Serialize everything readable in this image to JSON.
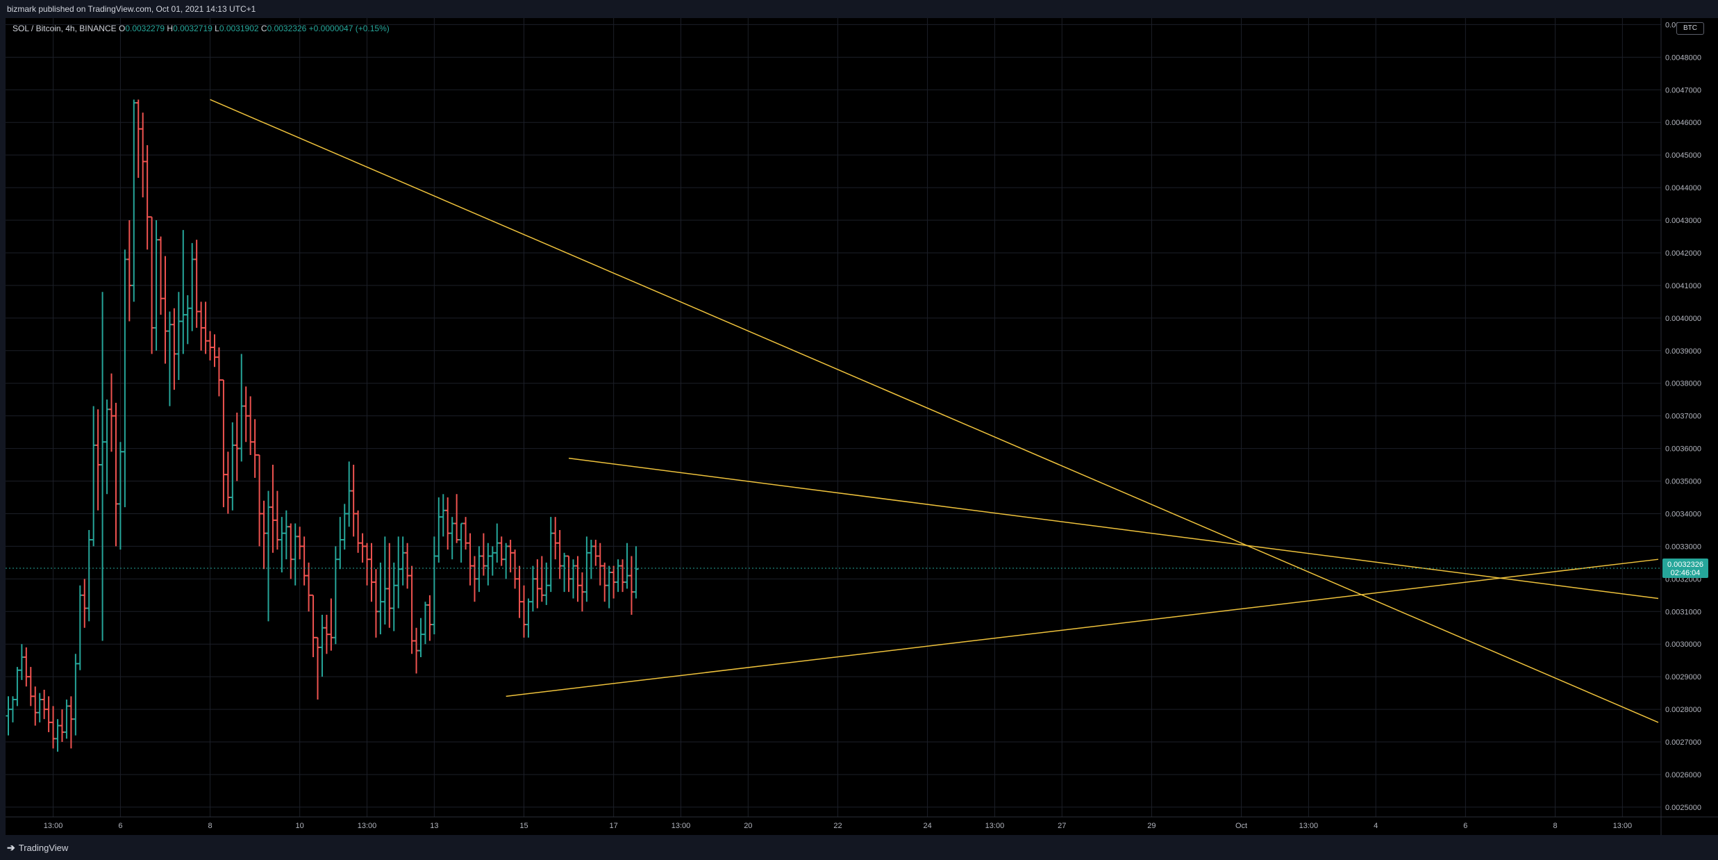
{
  "header": {
    "published": "bizmark published on TradingView.com, Oct 01, 2021 14:13 UTC+1"
  },
  "legend": {
    "symbol": "SOL / Bitcoin, 4h, BINANCE",
    "open_label": "O",
    "open": "0.0032279",
    "high_label": "H",
    "high": "0.0032719",
    "low_label": "L",
    "low": "0.0031902",
    "close_label": "C",
    "close": "0.0032326",
    "change": "+0.0000047 (+0.15%)"
  },
  "currency_badge": "BTC",
  "price_tag": {
    "price": "0.0032326",
    "countdown": "02:46:04",
    "color": "#26a69a"
  },
  "footer": {
    "brand": "TradingView"
  },
  "colors": {
    "up": "#26a69a",
    "down": "#ef5350",
    "trendline": "#f0c33c",
    "grid": "#1c1f28"
  },
  "chart_data": {
    "type": "ohlc",
    "title": "SOL / Bitcoin, 4h, BINANCE",
    "ylim": [
      0.00247,
      0.00492
    ],
    "y_ticks": [
      "0.0025000",
      "0.0026000",
      "0.0027000",
      "0.0028000",
      "0.0029000",
      "0.0030000",
      "0.0031000",
      "0.0032000",
      "0.0033000",
      "0.0034000",
      "0.0035000",
      "0.0036000",
      "0.0037000",
      "0.0038000",
      "0.0039000",
      "0.0040000",
      "0.0041000",
      "0.0042000",
      "0.0043000",
      "0.0044000",
      "0.0045000",
      "0.0046000",
      "0.0047000",
      "0.0048000",
      "0.0049000"
    ],
    "x_ticks": [
      {
        "label": "13:00",
        "bar": 10
      },
      {
        "label": "6",
        "bar": 25
      },
      {
        "label": "8",
        "bar": 45
      },
      {
        "label": "10",
        "bar": 65
      },
      {
        "label": "13:00",
        "bar": 80
      },
      {
        "label": "13",
        "bar": 95
      },
      {
        "label": "15",
        "bar": 115
      },
      {
        "label": "17",
        "bar": 135
      },
      {
        "label": "13:00",
        "bar": 150
      },
      {
        "label": "20",
        "bar": 165
      },
      {
        "label": "22",
        "bar": 185
      },
      {
        "label": "24",
        "bar": 205
      },
      {
        "label": "13:00",
        "bar": 220
      },
      {
        "label": "27",
        "bar": 235
      },
      {
        "label": "29",
        "bar": 255
      },
      {
        "label": "Oct",
        "bar": 275
      },
      {
        "label": "13:00",
        "bar": 290
      },
      {
        "label": "4",
        "bar": 305
      },
      {
        "label": "6",
        "bar": 325
      },
      {
        "label": "8",
        "bar": 345
      },
      {
        "label": "13:00",
        "bar": 360
      }
    ],
    "bars_total_span": 368,
    "ohlc": [
      [
        0.00278,
        0.00284,
        0.00272,
        0.0028
      ],
      [
        0.0028,
        0.00284,
        0.00276,
        0.00283
      ],
      [
        0.00283,
        0.00293,
        0.00281,
        0.00292
      ],
      [
        0.00292,
        0.003,
        0.00289,
        0.00296
      ],
      [
        0.00296,
        0.00299,
        0.00287,
        0.0029
      ],
      [
        0.0029,
        0.00293,
        0.00281,
        0.00284
      ],
      [
        0.00284,
        0.00287,
        0.00275,
        0.00279
      ],
      [
        0.00279,
        0.00285,
        0.00276,
        0.00283
      ],
      [
        0.00283,
        0.00286,
        0.00277,
        0.0028
      ],
      [
        0.0028,
        0.00284,
        0.00273,
        0.00276
      ],
      [
        0.00276,
        0.00281,
        0.00268,
        0.00271
      ],
      [
        0.00271,
        0.00277,
        0.00267,
        0.00275
      ],
      [
        0.00275,
        0.0028,
        0.0027,
        0.00273
      ],
      [
        0.00273,
        0.00283,
        0.00271,
        0.00281
      ],
      [
        0.00281,
        0.00284,
        0.00268,
        0.00277
      ],
      [
        0.00277,
        0.00297,
        0.00272,
        0.00294
      ],
      [
        0.00294,
        0.00318,
        0.00292,
        0.00315
      ],
      [
        0.00315,
        0.0032,
        0.00305,
        0.00311
      ],
      [
        0.00311,
        0.00335,
        0.00307,
        0.00332
      ],
      [
        0.00332,
        0.00373,
        0.0033,
        0.00361
      ],
      [
        0.00361,
        0.00372,
        0.00341,
        0.00355
      ],
      [
        0.00355,
        0.00408,
        0.00301,
        0.00362
      ],
      [
        0.00362,
        0.00375,
        0.00346,
        0.00372
      ],
      [
        0.00372,
        0.00383,
        0.00359,
        0.0037
      ],
      [
        0.0037,
        0.00374,
        0.0033,
        0.00343
      ],
      [
        0.00343,
        0.00362,
        0.00329,
        0.00359
      ],
      [
        0.00359,
        0.00421,
        0.00342,
        0.00418
      ],
      [
        0.00418,
        0.0043,
        0.00399,
        0.0041
      ],
      [
        0.0041,
        0.00467,
        0.00405,
        0.00466
      ],
      [
        0.00466,
        0.00467,
        0.00443,
        0.00458
      ],
      [
        0.00458,
        0.00463,
        0.00437,
        0.00448
      ],
      [
        0.00448,
        0.00453,
        0.00421,
        0.00431
      ],
      [
        0.00431,
        0.00431,
        0.00389,
        0.00397
      ],
      [
        0.00397,
        0.0043,
        0.0039,
        0.00424
      ],
      [
        0.00424,
        0.00425,
        0.00401,
        0.00406
      ],
      [
        0.00406,
        0.00419,
        0.00386,
        0.00396
      ],
      [
        0.00396,
        0.00402,
        0.00373,
        0.00398
      ],
      [
        0.00398,
        0.00403,
        0.00378,
        0.00389
      ],
      [
        0.00389,
        0.00408,
        0.00381,
        0.00399
      ],
      [
        0.00399,
        0.00427,
        0.00389,
        0.00401
      ],
      [
        0.00401,
        0.00407,
        0.00392,
        0.00403
      ],
      [
        0.00403,
        0.00423,
        0.00396,
        0.00418
      ],
      [
        0.00418,
        0.00424,
        0.00397,
        0.00402
      ],
      [
        0.00402,
        0.00405,
        0.0039,
        0.00397
      ],
      [
        0.00397,
        0.00405,
        0.00389,
        0.00393
      ],
      [
        0.00393,
        0.00396,
        0.00387,
        0.00391
      ],
      [
        0.00391,
        0.00395,
        0.00385,
        0.00388
      ],
      [
        0.00388,
        0.00391,
        0.00376,
        0.00381
      ],
      [
        0.00381,
        0.00381,
        0.00342,
        0.00352
      ],
      [
        0.00352,
        0.00359,
        0.0034,
        0.00345
      ],
      [
        0.00345,
        0.00368,
        0.00341,
        0.00361
      ],
      [
        0.00361,
        0.00371,
        0.0035,
        0.0036
      ],
      [
        0.0036,
        0.00389,
        0.00356,
        0.00373
      ],
      [
        0.00373,
        0.00379,
        0.00362,
        0.0037
      ],
      [
        0.0037,
        0.00376,
        0.00358,
        0.00362
      ],
      [
        0.00362,
        0.00369,
        0.00351,
        0.00358
      ],
      [
        0.00358,
        0.00358,
        0.0033,
        0.0034
      ],
      [
        0.0034,
        0.00344,
        0.00323,
        0.00334
      ],
      [
        0.00334,
        0.00347,
        0.00307,
        0.00342
      ],
      [
        0.00342,
        0.00355,
        0.00328,
        0.00338
      ],
      [
        0.00338,
        0.00347,
        0.00329,
        0.00332
      ],
      [
        0.00332,
        0.00339,
        0.00322,
        0.00334
      ],
      [
        0.00334,
        0.00341,
        0.00326,
        0.00336
      ],
      [
        0.00336,
        0.00337,
        0.0032,
        0.00326
      ],
      [
        0.00326,
        0.00337,
        0.00318,
        0.00333
      ],
      [
        0.00333,
        0.00336,
        0.00326,
        0.0033
      ],
      [
        0.0033,
        0.00333,
        0.00318,
        0.00321
      ],
      [
        0.00321,
        0.00325,
        0.0031,
        0.00315
      ],
      [
        0.00315,
        0.00315,
        0.00296,
        0.00302
      ],
      [
        0.00302,
        0.00302,
        0.00283,
        0.00299
      ],
      [
        0.00299,
        0.00309,
        0.0029,
        0.00305
      ],
      [
        0.00305,
        0.00309,
        0.00297,
        0.00303
      ],
      [
        0.00303,
        0.00314,
        0.00298,
        0.00302
      ],
      [
        0.00302,
        0.0033,
        0.003,
        0.00326
      ],
      [
        0.00326,
        0.00339,
        0.00323,
        0.00332
      ],
      [
        0.00332,
        0.00343,
        0.00329,
        0.0034
      ],
      [
        0.0034,
        0.00356,
        0.00336,
        0.00347
      ],
      [
        0.00347,
        0.00355,
        0.00333,
        0.0034
      ],
      [
        0.0034,
        0.00341,
        0.00328,
        0.00331
      ],
      [
        0.00331,
        0.00334,
        0.00325,
        0.0033
      ],
      [
        0.0033,
        0.00331,
        0.00318,
        0.00326
      ],
      [
        0.00326,
        0.00331,
        0.00313,
        0.00319
      ],
      [
        0.00319,
        0.00323,
        0.00302,
        0.0031
      ],
      [
        0.0031,
        0.00325,
        0.00303,
        0.00313
      ],
      [
        0.00313,
        0.00333,
        0.00306,
        0.00317
      ],
      [
        0.00317,
        0.00331,
        0.00305,
        0.00311
      ],
      [
        0.00311,
        0.00325,
        0.00304,
        0.00318
      ],
      [
        0.00318,
        0.00333,
        0.00311,
        0.00323
      ],
      [
        0.00323,
        0.00333,
        0.00318,
        0.00328
      ],
      [
        0.00328,
        0.00331,
        0.00317,
        0.00321
      ],
      [
        0.00321,
        0.00324,
        0.00297,
        0.00301
      ],
      [
        0.00301,
        0.00305,
        0.00291,
        0.00298
      ],
      [
        0.00298,
        0.00308,
        0.00296,
        0.00303
      ],
      [
        0.00303,
        0.00313,
        0.003,
        0.00312
      ],
      [
        0.00312,
        0.00315,
        0.00301,
        0.00306
      ],
      [
        0.00306,
        0.00333,
        0.00303,
        0.00327
      ],
      [
        0.00327,
        0.00345,
        0.00325,
        0.00339
      ],
      [
        0.00339,
        0.00346,
        0.00333,
        0.00341
      ],
      [
        0.00341,
        0.00345,
        0.00329,
        0.00334
      ],
      [
        0.00334,
        0.00339,
        0.00326,
        0.00337
      ],
      [
        0.00337,
        0.00346,
        0.00331,
        0.00332
      ],
      [
        0.00332,
        0.00337,
        0.00325,
        0.00337
      ],
      [
        0.00337,
        0.00339,
        0.00329,
        0.00331
      ],
      [
        0.00331,
        0.00334,
        0.00318,
        0.00324
      ],
      [
        0.00324,
        0.00327,
        0.00313,
        0.0032
      ],
      [
        0.0032,
        0.0033,
        0.00316,
        0.00327
      ],
      [
        0.00327,
        0.00334,
        0.00321,
        0.00324
      ],
      [
        0.00324,
        0.00331,
        0.00318,
        0.00327
      ],
      [
        0.00327,
        0.0033,
        0.00321,
        0.00328
      ],
      [
        0.00328,
        0.00337,
        0.00325,
        0.00331
      ],
      [
        0.00331,
        0.00333,
        0.00324,
        0.00326
      ],
      [
        0.00326,
        0.00331,
        0.0032,
        0.0033
      ],
      [
        0.0033,
        0.00332,
        0.00322,
        0.00328
      ],
      [
        0.00328,
        0.00329,
        0.00317,
        0.0032
      ],
      [
        0.0032,
        0.00324,
        0.00308,
        0.00313
      ],
      [
        0.00313,
        0.00318,
        0.00302,
        0.00306
      ],
      [
        0.00306,
        0.00314,
        0.00302,
        0.00313
      ],
      [
        0.00313,
        0.00324,
        0.0031,
        0.0032
      ],
      [
        0.0032,
        0.00326,
        0.00311,
        0.00317
      ],
      [
        0.00317,
        0.00327,
        0.00313,
        0.00315
      ],
      [
        0.00315,
        0.00325,
        0.00312,
        0.00318
      ],
      [
        0.00318,
        0.00339,
        0.00316,
        0.00334
      ],
      [
        0.00334,
        0.00339,
        0.00326,
        0.00331
      ],
      [
        0.00331,
        0.00335,
        0.0032,
        0.00324
      ],
      [
        0.00324,
        0.00328,
        0.00316,
        0.00327
      ],
      [
        0.00327,
        0.00327,
        0.00316,
        0.0032
      ],
      [
        0.0032,
        0.00326,
        0.00314,
        0.00324
      ],
      [
        0.00324,
        0.00327,
        0.00313,
        0.00318
      ],
      [
        0.00318,
        0.00322,
        0.0031,
        0.00316
      ],
      [
        0.00316,
        0.00333,
        0.00313,
        0.00328
      ],
      [
        0.00328,
        0.00332,
        0.0032,
        0.0033
      ],
      [
        0.0033,
        0.00332,
        0.00324,
        0.00327
      ],
      [
        0.00327,
        0.00331,
        0.00318,
        0.00324
      ],
      [
        0.00324,
        0.00325,
        0.00313,
        0.00318
      ],
      [
        0.00318,
        0.00324,
        0.00311,
        0.00322
      ],
      [
        0.00322,
        0.00324,
        0.00314,
        0.00319
      ],
      [
        0.00319,
        0.00326,
        0.00316,
        0.00324
      ],
      [
        0.00324,
        0.00326,
        0.00316,
        0.00319
      ],
      [
        0.00319,
        0.00331,
        0.00317,
        0.00321
      ],
      [
        0.00321,
        0.00327,
        0.00309,
        0.00316
      ],
      [
        0.00316,
        0.0033,
        0.00314,
        0.00323
      ]
    ],
    "trendlines": [
      {
        "name": "upper-descending",
        "from": [
          45,
          0.00467
        ],
        "to": [
          368,
          0.00276
        ]
      },
      {
        "name": "inner-descending",
        "from": [
          125,
          0.00357
        ],
        "to": [
          368,
          0.00314
        ]
      },
      {
        "name": "ascending-support",
        "from": [
          111,
          0.00284
        ],
        "to": [
          368,
          0.00326
        ]
      }
    ],
    "last_price": 0.0032326,
    "grid": true
  }
}
